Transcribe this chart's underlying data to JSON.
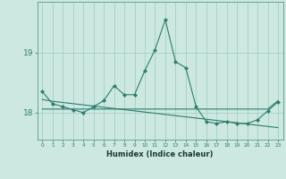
{
  "xlabel": "Humidex (Indice chaleur)",
  "x_values": [
    0,
    1,
    2,
    3,
    4,
    5,
    6,
    7,
    8,
    9,
    10,
    11,
    12,
    13,
    14,
    15,
    16,
    17,
    18,
    19,
    20,
    21,
    22,
    23
  ],
  "y_main": [
    18.35,
    18.15,
    18.1,
    18.05,
    18.0,
    18.1,
    18.2,
    18.45,
    18.3,
    18.3,
    18.7,
    19.05,
    19.55,
    18.85,
    18.75,
    18.1,
    17.85,
    17.82,
    17.85,
    17.82,
    17.82,
    17.88,
    18.03,
    18.18
  ],
  "y_trend": [
    18.22,
    18.19,
    18.17,
    18.15,
    18.13,
    18.11,
    18.09,
    18.07,
    18.05,
    18.03,
    18.01,
    17.99,
    17.97,
    17.95,
    17.93,
    17.91,
    17.89,
    17.87,
    17.85,
    17.83,
    17.81,
    17.79,
    17.77,
    17.75
  ],
  "y_flat": [
    18.06,
    18.06,
    18.06,
    18.06,
    18.06,
    18.06,
    18.06,
    18.06,
    18.06,
    18.06,
    18.06,
    18.06,
    18.06,
    18.06,
    18.06,
    18.06,
    18.06,
    18.06,
    18.06,
    18.06,
    18.06,
    18.06,
    18.06,
    18.2
  ],
  "line_color": "#2e7d6e",
  "bg_color": "#cce8e0",
  "grid_color": "#9eccc0",
  "yticks": [
    18,
    19
  ],
  "ylim": [
    17.55,
    19.85
  ],
  "xlim": [
    -0.5,
    23.5
  ]
}
